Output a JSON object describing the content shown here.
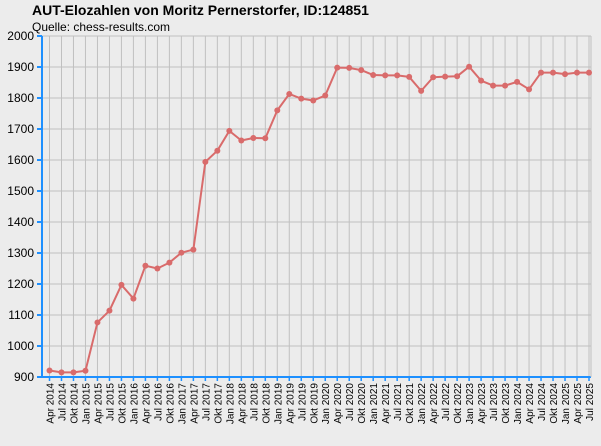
{
  "title": "AUT-Elozahlen von Moritz Pernerstorfer, ID:124851",
  "subtitle": "Quelle: chess-results.com",
  "colors": {
    "background": "#ececec",
    "grid": "#c0c0c0",
    "axis": "#1e90ff",
    "line": "#d96b6b"
  },
  "chart_data": {
    "type": "line",
    "title": "AUT-Elozahlen von Moritz Pernerstorfer, ID:124851",
    "subtitle": "Quelle: chess-results.com",
    "xlabel": "",
    "ylabel": "",
    "ylim": [
      900,
      2000
    ],
    "yticks": [
      900,
      1000,
      1100,
      1200,
      1300,
      1400,
      1500,
      1600,
      1700,
      1800,
      1900,
      2000
    ],
    "grid": true,
    "categories": [
      "Apr 2014",
      "Jul 2014",
      "Okt 2014",
      "Jan 2015",
      "Apr 2015",
      "Jul 2015",
      "Okt 2015",
      "Jan 2016",
      "Apr 2016",
      "Jul 2016",
      "Okt 2016",
      "Jan 2017",
      "Apr 2017",
      "Jul 2017",
      "Okt 2017",
      "Jan 2018",
      "Apr 2018",
      "Jul 2018",
      "Okt 2018",
      "Jan 2019",
      "Apr 2019",
      "Jul 2019",
      "Okt 2019",
      "Jan 2020",
      "Apr 2020",
      "Jul 2020",
      "Okt 2020",
      "Jan 2021",
      "Apr 2021",
      "Jul 2021",
      "Okt 2021",
      "Jan 2022",
      "Apr 2022",
      "Jul 2022",
      "Okt 2022",
      "Jan 2023",
      "Apr 2023",
      "Jul 2023",
      "Okt 2023",
      "Jan 2024",
      "Apr 2024",
      "Jul 2024",
      "Okt 2024",
      "Jan 2025",
      "Apr 2025",
      "Jul 2025"
    ],
    "series": [
      {
        "values": [
          921,
          915,
          915,
          920,
          1076,
          1114,
          1197,
          1153,
          1259,
          1250,
          1269,
          1301,
          1311,
          1594,
          1630,
          1694,
          1663,
          1671,
          1670,
          1760,
          1813,
          1798,
          1792,
          1808,
          1898,
          1897,
          1890,
          1874,
          1873,
          1873,
          1868,
          1823,
          1867,
          1869,
          1870,
          1901,
          1856,
          1840,
          1840,
          1852,
          1828,
          1882,
          1882,
          1877,
          1882,
          1882
        ]
      }
    ]
  }
}
